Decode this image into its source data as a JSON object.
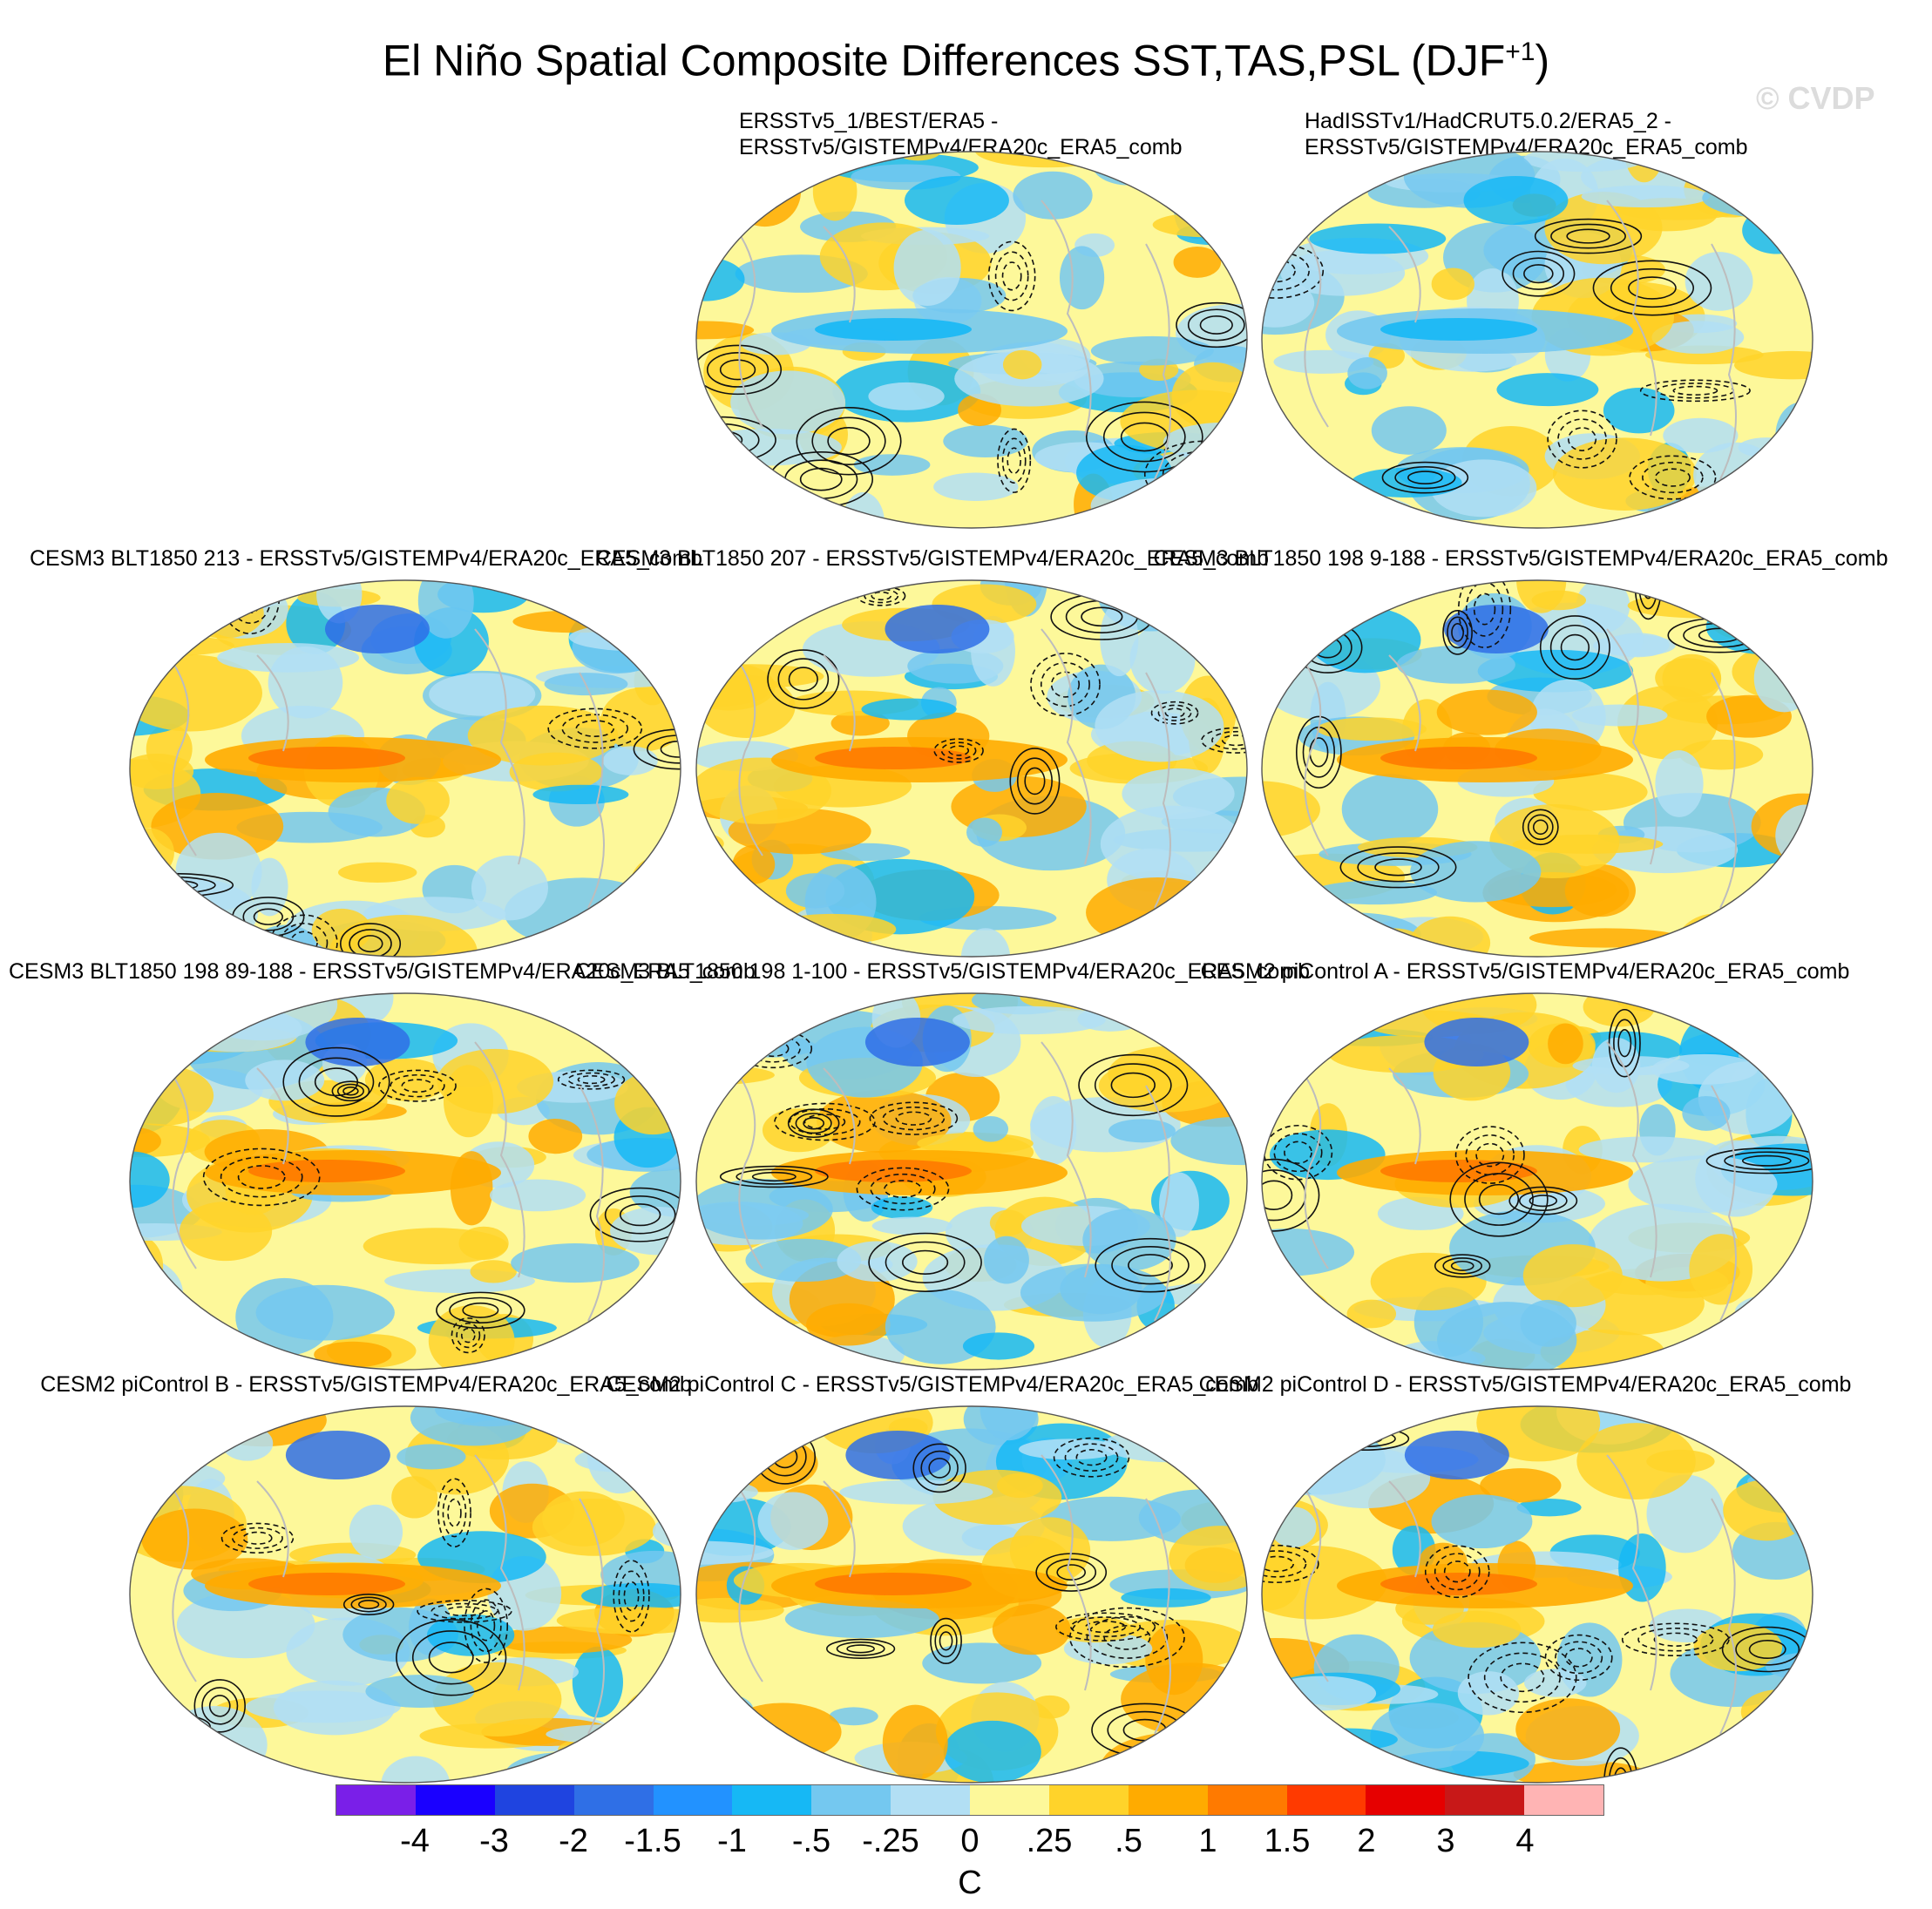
{
  "title_main": "El Niño Spatial Composite Differences SST,TAS,PSL (DJF",
  "title_sup": "+1",
  "title_end": ")",
  "watermark": "© CVDP",
  "panels": [
    {
      "title": [
        "ERSSTv5_1/BEST/ERA5 -",
        "ERSSTv5/GISTEMPv4/ERA20c_ERA5_comb"
      ]
    },
    {
      "title": [
        "HadISSTv1/HadCRUT5.0.2/ERA5_2 -",
        "ERSSTv5/GISTEMPv4/ERA20c_ERA5_comb"
      ]
    },
    {
      "title": [
        "CESM3 BLT1850 213 - ERSSTv5/GISTEMPv4/ERA20c_ERA5_comb"
      ]
    },
    {
      "title": [
        "CESM3 BLT1850 207 - ERSSTv5/GISTEMPv4/ERA20c_ERA5_comb"
      ]
    },
    {
      "title": [
        "CESM3 BLT1850 198 9-188 - ERSSTv5/GISTEMPv4/ERA20c_ERA5_comb"
      ]
    },
    {
      "title": [
        "CESM3 BLT1850 198 89-188 - ERSSTv5/GISTEMPv4/ERA20c_ERA5_comb"
      ]
    },
    {
      "title": [
        "CESM3 BLT1850 198 1-100 - ERSSTv5/GISTEMPv4/ERA20c_ERA5_comb"
      ]
    },
    {
      "title": [
        "CESM2 piControl A - ERSSTv5/GISTEMPv4/ERA20c_ERA5_comb"
      ]
    },
    {
      "title": [
        "CESM2 piControl B - ERSSTv5/GISTEMPv4/ERA20c_ERA5_comb"
      ]
    },
    {
      "title": [
        "CESM2 piControl C - ERSSTv5/GISTEMPv4/ERA20c_ERA5_comb"
      ]
    },
    {
      "title": [
        "CESM2 piControl D - ERSSTv5/GISTEMPv4/ERA20c_ERA5_comb"
      ]
    }
  ],
  "colorbar": {
    "colors": [
      "#7a1fe8",
      "#1a00ff",
      "#1f44e0",
      "#2f6fe6",
      "#2292ff",
      "#16b8f5",
      "#74c8f0",
      "#b2dff4",
      "#fdf89a",
      "#ffd32a",
      "#ffab00",
      "#ff7a00",
      "#ff3a00",
      "#e60000",
      "#c81818",
      "#ffb4b4"
    ],
    "labels": [
      "-4",
      "-3",
      "-2",
      "-1.5",
      "-1",
      "-.5",
      "-.25",
      "0",
      ".25",
      ".5",
      "1",
      "1.5",
      "2",
      "3",
      "4"
    ],
    "units": "C"
  }
}
